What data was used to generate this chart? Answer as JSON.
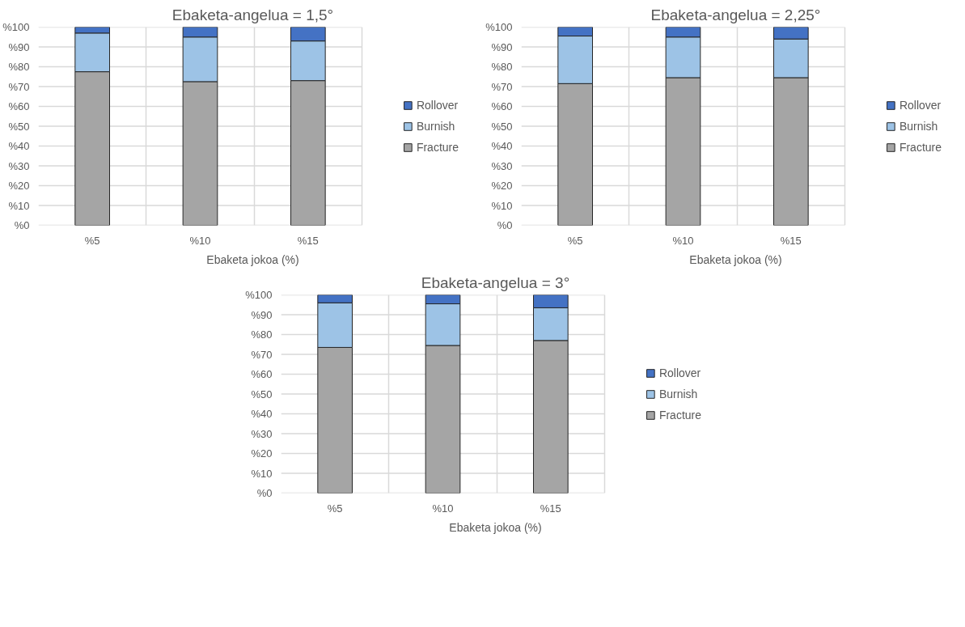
{
  "chart_data": [
    {
      "type": "bar",
      "title": "Ebaketa-angelua = 1,5°",
      "xlabel": "Ebaketa jokoa (%)",
      "categories": [
        "%5",
        "%10",
        "%15"
      ],
      "stacked": true,
      "ylim": [
        0,
        100
      ],
      "yticks": [
        {
          "value": 0,
          "label": "%0"
        },
        {
          "value": 10,
          "label": "%10"
        },
        {
          "value": 20,
          "label": "%20"
        },
        {
          "value": 30,
          "label": "%30"
        },
        {
          "value": 40,
          "label": "%40"
        },
        {
          "value": 50,
          "label": "%50"
        },
        {
          "value": 60,
          "label": "%60"
        },
        {
          "value": 70,
          "label": "%70"
        },
        {
          "value": 80,
          "label": "%80"
        },
        {
          "value": 90,
          "label": "%90"
        },
        {
          "value": 100,
          "label": "%100"
        }
      ],
      "grid": true,
      "legend": "right",
      "series": [
        {
          "name": "Fracture",
          "color": "#a5a5a5",
          "values": [
            77.5,
            72.5,
            73
          ]
        },
        {
          "name": "Burnish",
          "color": "#9dc3e6",
          "values": [
            19.5,
            22.5,
            20
          ]
        },
        {
          "name": "Rollover",
          "color": "#4472c4",
          "values": [
            3,
            5,
            7
          ]
        }
      ]
    },
    {
      "type": "bar",
      "title": "Ebaketa-angelua = 2,25°",
      "xlabel": "Ebaketa jokoa (%)",
      "categories": [
        "%5",
        "%10",
        "%15"
      ],
      "stacked": true,
      "ylim": [
        0,
        100
      ],
      "yticks": [
        {
          "value": 0,
          "label": "%0"
        },
        {
          "value": 10,
          "label": "%10"
        },
        {
          "value": 20,
          "label": "%20"
        },
        {
          "value": 30,
          "label": "%30"
        },
        {
          "value": 40,
          "label": "%40"
        },
        {
          "value": 50,
          "label": "%50"
        },
        {
          "value": 60,
          "label": "%60"
        },
        {
          "value": 70,
          "label": "%70"
        },
        {
          "value": 80,
          "label": "%80"
        },
        {
          "value": 90,
          "label": "%90"
        },
        {
          "value": 100,
          "label": "%100"
        }
      ],
      "grid": true,
      "legend": "right",
      "series": [
        {
          "name": "Fracture",
          "color": "#a5a5a5",
          "values": [
            71.5,
            74.5,
            74.5
          ]
        },
        {
          "name": "Burnish",
          "color": "#9dc3e6",
          "values": [
            24,
            20.5,
            19.5
          ]
        },
        {
          "name": "Rollover",
          "color": "#4472c4",
          "values": [
            4.5,
            5,
            6
          ]
        }
      ]
    },
    {
      "type": "bar",
      "title": "Ebaketa-angelua = 3°",
      "xlabel": "Ebaketa jokoa (%)",
      "categories": [
        "%5",
        "%10",
        "%15"
      ],
      "stacked": true,
      "ylim": [
        0,
        100
      ],
      "yticks": [
        {
          "value": 0,
          "label": "%0"
        },
        {
          "value": 10,
          "label": "%10"
        },
        {
          "value": 20,
          "label": "%20"
        },
        {
          "value": 30,
          "label": "%30"
        },
        {
          "value": 40,
          "label": "%40"
        },
        {
          "value": 50,
          "label": "%50"
        },
        {
          "value": 60,
          "label": "%60"
        },
        {
          "value": 70,
          "label": "%70"
        },
        {
          "value": 80,
          "label": "%80"
        },
        {
          "value": 90,
          "label": "%90"
        },
        {
          "value": 100,
          "label": "%100"
        }
      ],
      "grid": true,
      "legend": "right",
      "series": [
        {
          "name": "Fracture",
          "color": "#a5a5a5",
          "values": [
            73.5,
            74.5,
            77
          ]
        },
        {
          "name": "Burnish",
          "color": "#9dc3e6",
          "values": [
            22.5,
            21,
            16.5
          ]
        },
        {
          "name": "Rollover",
          "color": "#4472c4",
          "values": [
            4,
            4.5,
            6.5
          ]
        }
      ]
    }
  ]
}
